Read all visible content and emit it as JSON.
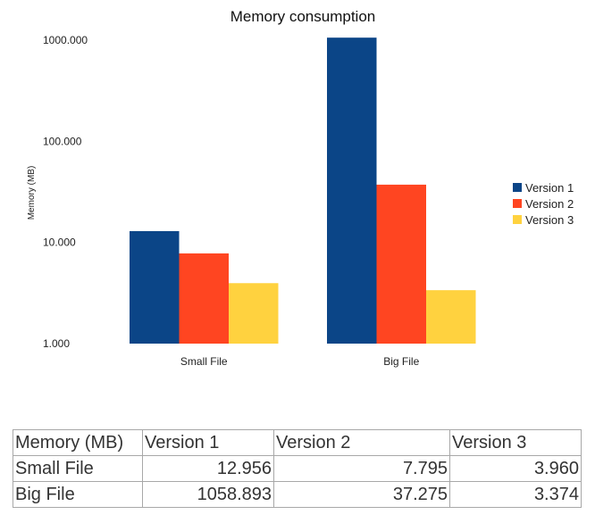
{
  "chart_data": {
    "type": "bar",
    "title": "Memory consumption",
    "ylabel": "Memory (MB)",
    "xlabel": "",
    "yscale": "log",
    "ylim": [
      1,
      1000
    ],
    "yticks": [
      "1.000",
      "10.000",
      "100.000",
      "1000.000"
    ],
    "ytick_values": [
      1,
      10,
      100,
      1000
    ],
    "grid": false,
    "legend_position": "right",
    "categories": [
      "Small File",
      "Big File"
    ],
    "series": [
      {
        "name": "Version 1",
        "color": "#0b4587",
        "values": [
          12.956,
          1058.893
        ]
      },
      {
        "name": "Version 2",
        "color": "#ff4521",
        "values": [
          7.795,
          37.275
        ]
      },
      {
        "name": "Version 3",
        "color": "#ffd23f",
        "values": [
          3.96,
          3.374
        ]
      }
    ]
  },
  "table": {
    "corner": "Memory (MB)",
    "columns": [
      "Version 1",
      "Version 2",
      "Version 3"
    ],
    "rows": [
      {
        "label": "Small File",
        "cells": [
          "12.956",
          "7.795",
          "3.960"
        ]
      },
      {
        "label": "Big File",
        "cells": [
          "1058.893",
          "37.275",
          "3.374"
        ]
      }
    ]
  }
}
